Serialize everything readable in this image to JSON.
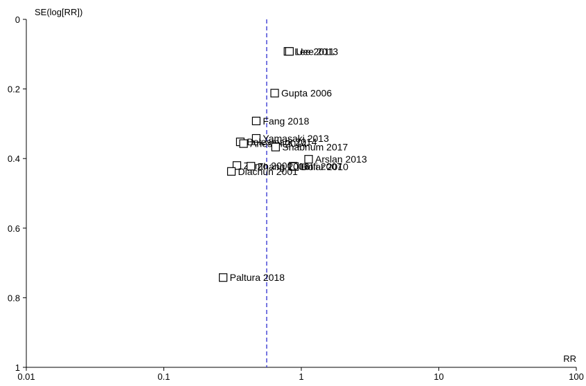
{
  "chart_data": {
    "type": "scatter",
    "title": "",
    "xlabel": "RR",
    "ylabel": "SE(log[RR])",
    "x_scale": "log",
    "xlim": [
      0.01,
      100
    ],
    "ylim": [
      0,
      1
    ],
    "y_inverted": true,
    "x_ticks": [
      0.01,
      0.1,
      1,
      10,
      100
    ],
    "x_tick_labels": [
      "0.01",
      "0.1",
      "1",
      "10",
      "100"
    ],
    "y_ticks": [
      0,
      0.2,
      0.4,
      0.6,
      0.8,
      1
    ],
    "y_tick_labels": [
      "0",
      "0.2",
      "0.4",
      "0.6",
      "0.8",
      "1"
    ],
    "grid": false,
    "pooled_estimate": 0.56,
    "reference_line_color": "#2c2cd0",
    "points": [
      {
        "label": "Lee 2011",
        "rr": 0.8,
        "se": 0.092
      },
      {
        "label": "Uee 2013",
        "rr": 0.82,
        "se": 0.092
      },
      {
        "label": "Gupta 2006",
        "rr": 0.64,
        "se": 0.212
      },
      {
        "label": "Fang 2018",
        "rr": 0.47,
        "se": 0.292
      },
      {
        "label": "Yamasaki 2013",
        "rr": 0.47,
        "se": 0.342
      },
      {
        "label": "Bolesmark 2014",
        "rr": 0.36,
        "se": 0.352
      },
      {
        "label": "Ariesmi 2014",
        "rr": 0.38,
        "se": 0.357
      },
      {
        "label": "Shabnum 2017",
        "rr": 0.65,
        "se": 0.367
      },
      {
        "label": "Arslan 2013",
        "rr": 1.13,
        "se": 0.402
      },
      {
        "label": "Zamo 2000",
        "rr": 0.34,
        "se": 0.42
      },
      {
        "label": "Lotfi 2007",
        "rr": 0.87,
        "se": 0.422
      },
      {
        "label": "Dolar 2010",
        "rr": 0.89,
        "se": 0.423
      },
      {
        "label": "Zhang 2006",
        "rr": 0.43,
        "se": 0.422
      },
      {
        "label": "Diachun 2001",
        "rr": 0.31,
        "se": 0.437
      },
      {
        "label": "Paltura 2018",
        "rr": 0.27,
        "se": 0.742
      }
    ]
  }
}
